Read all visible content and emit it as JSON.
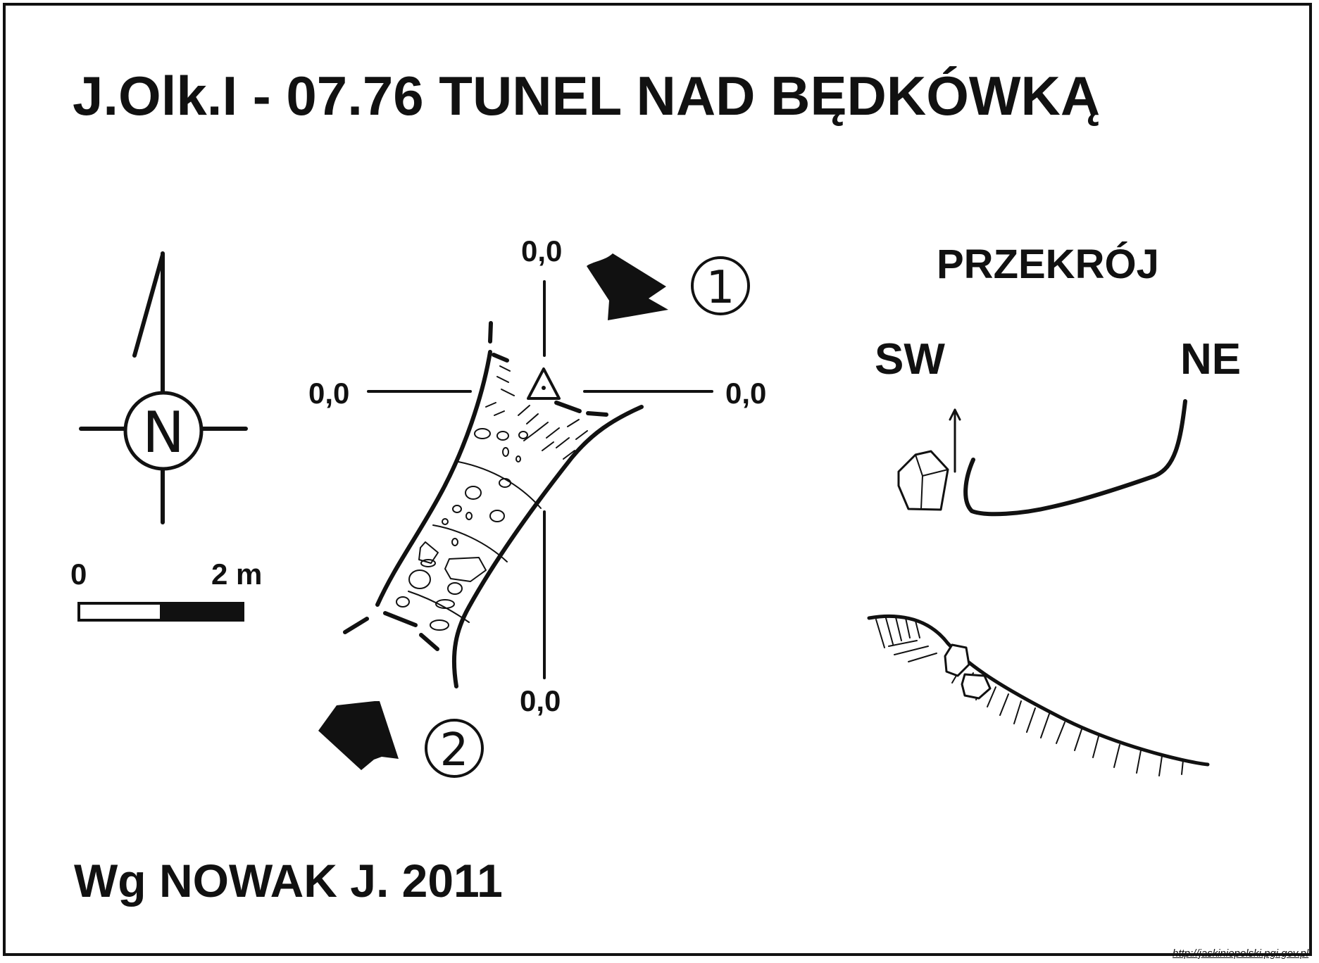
{
  "title": "J.Olk.I - 07.76  TUNEL NAD BĘDKÓWKĄ",
  "credit": "Wg NOWAK J. 2011",
  "north_arrow": {
    "label": "N"
  },
  "scale_bar": {
    "start_label": "0",
    "end_label": "2 m"
  },
  "plan": {
    "datum_labels": {
      "top": "0,0",
      "left": "0,0",
      "right": "0,0",
      "bottom": "0,0"
    },
    "entrances": [
      {
        "number": "1",
        "symbol": "①"
      },
      {
        "number": "2",
        "symbol": "②"
      }
    ]
  },
  "section": {
    "title": "PRZEKRÓJ",
    "left_direction": "SW",
    "right_direction": "NE"
  },
  "source_url": "http://jaskiniepolski.pgi.gov.pl",
  "colors": {
    "ink": "#111111",
    "paper": "#ffffff"
  }
}
